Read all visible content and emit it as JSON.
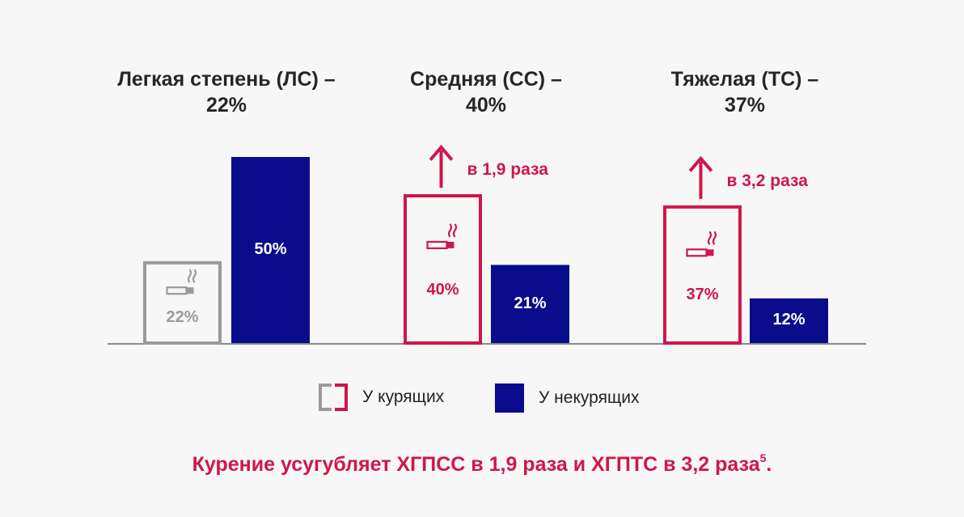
{
  "chart_data": {
    "type": "bar",
    "groups": [
      {
        "title_line1": "Легкая степень (ЛС) –",
        "title_line2": "22%",
        "smokers": 22,
        "smokers_label": "22%",
        "nonsmokers": 50,
        "nonsmokers_label": "50%",
        "annotation": ""
      },
      {
        "title_line1": "Средняя (СС) –",
        "title_line2": "40%",
        "smokers": 40,
        "smokers_label": "40%",
        "nonsmokers": 21,
        "nonsmokers_label": "21%",
        "annotation": "в 1,9 раза"
      },
      {
        "title_line1": "Тяжелая (ТС) –",
        "title_line2": "37%",
        "smokers": 37,
        "smokers_label": "37%",
        "nonsmokers": 12,
        "nonsmokers_label": "12%",
        "annotation": "в 3,2 раза"
      }
    ],
    "series": [
      {
        "name": "У курящих",
        "style": "outline"
      },
      {
        "name": "У некурящих",
        "style": "filled"
      }
    ],
    "ylim": [
      0,
      50
    ],
    "grid": false,
    "legend_position": "bottom-center"
  },
  "colors": {
    "accent": "#d0164b",
    "navy": "#0a0c8c",
    "gray": "#9a9a9a",
    "axis": "#8a8a8a"
  },
  "legend": {
    "smokers_label": "У курящих",
    "nonsmokers_label": "У некурящих"
  },
  "footer": {
    "text": "Курение усугубляет ХГПСС в 1,9 раза и ХГПТС в 3,2 раза",
    "superscript": "5",
    "suffix": "."
  }
}
